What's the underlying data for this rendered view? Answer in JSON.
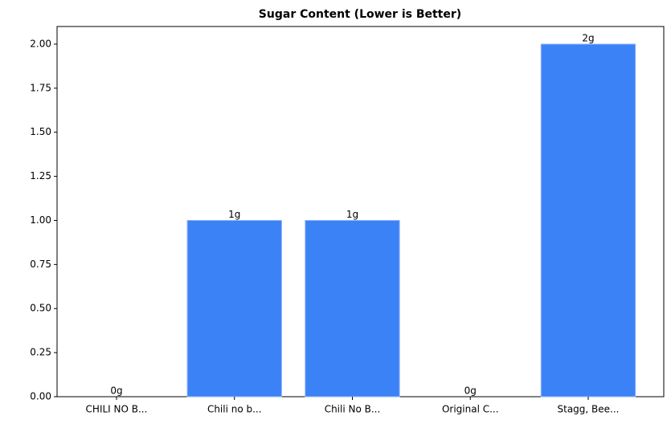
{
  "chart_data": {
    "type": "bar",
    "title": "Sugar Content (Lower is Better)",
    "categories": [
      "CHILI NO B...",
      "Chili no b...",
      "Chili No B...",
      "Original C...",
      "Stagg, Bee..."
    ],
    "values": [
      0,
      1,
      1,
      0,
      2
    ],
    "value_labels": [
      "0g",
      "1g",
      "1g",
      "0g",
      "2g"
    ],
    "color": "#3b82f6",
    "ylim": [
      0,
      2.1
    ],
    "yticks": [
      {
        "value": 0,
        "label": "0.00"
      },
      {
        "value": 0.25,
        "label": "0.25"
      },
      {
        "value": 0.5,
        "label": "0.50"
      },
      {
        "value": 0.75,
        "label": "0.75"
      },
      {
        "value": 1,
        "label": "1.00"
      },
      {
        "value": 1.25,
        "label": "1.25"
      },
      {
        "value": 1.5,
        "label": "1.50"
      },
      {
        "value": 1.75,
        "label": "1.75"
      },
      {
        "value": 2,
        "label": "2.00"
      }
    ]
  }
}
